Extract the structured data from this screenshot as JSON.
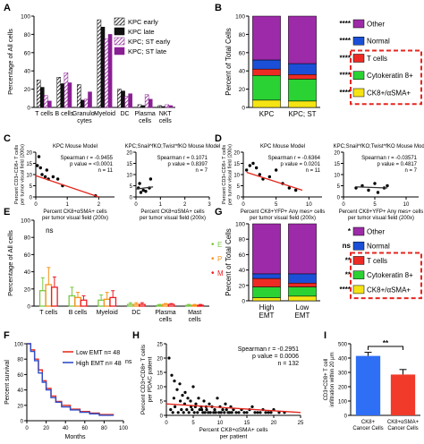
{
  "chart_data": [
    {
      "panel": "A",
      "type": "bar",
      "ylabel": "Percentage of All cells",
      "ylim": [
        0,
        100
      ],
      "yticks": [
        0,
        20,
        40,
        60,
        80,
        100
      ],
      "categories": [
        "T cells",
        "B cells",
        "Granulo-\ncytes",
        "Myeloid",
        "DC",
        "Plasma\ncells",
        "NKT\ncells"
      ],
      "series": [
        {
          "name": "KPC early",
          "pattern": "hatch-black",
          "values": [
            30,
            33,
            25,
            96,
            20,
            3,
            2
          ]
        },
        {
          "name": "KPC late",
          "pattern": "solid-black",
          "values": [
            22,
            26,
            8,
            88,
            18,
            2,
            1
          ]
        },
        {
          "name": "KPC; ST early",
          "pattern": "hatch-purple",
          "values": [
            13,
            38,
            9,
            75,
            12,
            14,
            3
          ]
        },
        {
          "name": "KPC; ST late",
          "pattern": "solid-purple",
          "values": [
            7,
            27,
            17,
            80,
            15,
            9,
            2
          ]
        }
      ]
    },
    {
      "panel": "B",
      "type": "bar",
      "stacked": true,
      "ylabel": "Percent of Total Cells",
      "ylim": [
        0,
        100
      ],
      "yticks": [
        0,
        20,
        40,
        60,
        80,
        100
      ],
      "categories": [
        "KPC",
        "KPC; ST"
      ],
      "series": [
        {
          "name": "CK8+/αSMA+",
          "color": "#f5e414",
          "values": [
            8,
            7
          ]
        },
        {
          "name": "Cytokeratin 8+",
          "color": "#2bd234",
          "values": [
            27,
            24
          ]
        },
        {
          "name": "T cells",
          "color": "#ee2a24",
          "values": [
            7,
            5
          ]
        },
        {
          "name": "Normal",
          "color": "#1b4fd8",
          "values": [
            10,
            12
          ]
        },
        {
          "name": "Other",
          "color": "#9d2aa8",
          "values": [
            48,
            52
          ]
        }
      ],
      "significance": [
        "****",
        "****",
        "****",
        "****",
        "****"
      ]
    },
    {
      "panel": "C",
      "type": "scatter",
      "title": "KPC Mouse Model",
      "xlabel": "Percent CK8+αSMA+ cells\nper tumor visual field (200x)",
      "ylabel": "Percent CD3+CD8+ T cells\nper tumor visual field (200x)",
      "xlim": [
        0,
        2.5
      ],
      "ylim": [
        0,
        20
      ],
      "xticks": [
        0,
        1,
        2
      ],
      "yticks": [
        0,
        5,
        10,
        15,
        20
      ],
      "points": [
        [
          0.05,
          14
        ],
        [
          0.1,
          18
        ],
        [
          0.15,
          13
        ],
        [
          0.2,
          10
        ],
        [
          0.3,
          9
        ],
        [
          0.35,
          12
        ],
        [
          0.4,
          8
        ],
        [
          0.55,
          9
        ],
        [
          0.7,
          8
        ],
        [
          0.85,
          5
        ],
        [
          1.9,
          0.5
        ]
      ],
      "fit": [
        [
          0,
          9.5
        ],
        [
          2.0,
          0
        ]
      ],
      "stats": {
        "label": "Spearman r",
        "r": "-0.9455",
        "p": "<0.0001",
        "n": "11"
      }
    },
    {
      "panel": "C2",
      "type": "scatter",
      "title": "KPC;Snail^fKO;Twist^fKO Mouse Model",
      "xlabel": "Percent CK8+αSMA+ cells\nper tumor visual field (200x)",
      "xlim": [
        0,
        3
      ],
      "ylim": [
        0,
        20
      ],
      "xticks": [
        0,
        1,
        2,
        3
      ],
      "yticks": [
        0,
        5,
        10,
        15,
        20
      ],
      "points": [
        [
          0.1,
          4
        ],
        [
          0.15,
          6
        ],
        [
          0.2,
          2
        ],
        [
          0.3,
          3
        ],
        [
          0.4,
          2.5
        ],
        [
          0.55,
          4
        ],
        [
          0.6,
          8
        ]
      ],
      "fit": [
        [
          0,
          3.5
        ],
        [
          0.7,
          4.5
        ]
      ],
      "stats": {
        "label": "Spearman r",
        "r": "0.1071",
        "p": "0.8397",
        "n": "7"
      }
    },
    {
      "panel": "D",
      "type": "scatter",
      "title": "KPC Mouse Model",
      "xlabel": "Percent CK8+YFP+ Any mes+ cells\nper tumor visual field (200x)",
      "ylabel": "Percent CD3+CD8+ T cells\nper tumor visual field (200x)",
      "xlim": [
        0,
        12
      ],
      "ylim": [
        0,
        20
      ],
      "xticks": [
        0,
        5,
        10
      ],
      "yticks": [
        0,
        5,
        10,
        15,
        20
      ],
      "points": [
        [
          0.5,
          12
        ],
        [
          1,
          14
        ],
        [
          1.5,
          15
        ],
        [
          2,
          13
        ],
        [
          2.5,
          10
        ],
        [
          3,
          8
        ],
        [
          4,
          9
        ],
        [
          5,
          12
        ],
        [
          6,
          6
        ],
        [
          7,
          4
        ],
        [
          8,
          3
        ]
      ],
      "fit": [
        [
          0.5,
          11
        ],
        [
          9,
          3
        ]
      ],
      "stats": {
        "label": "Spearman r",
        "r": "-0.6364",
        "p": "0.0201",
        "n": "11"
      }
    },
    {
      "panel": "D2",
      "type": "scatter",
      "title": "KPC;Snail^fKO;Twist^fKO Mouse Model",
      "xlabel": "Percent CK8+YFP+ Any mes+ cells\nper tumor visual field (200x)",
      "xlim": [
        0,
        12
      ],
      "ylim": [
        0,
        20
      ],
      "xticks": [
        0,
        5,
        10
      ],
      "yticks": [
        0,
        5,
        10,
        15,
        20
      ],
      "points": [
        [
          2,
          4
        ],
        [
          3,
          5
        ],
        [
          4,
          3
        ],
        [
          5,
          6
        ],
        [
          5.5,
          2
        ],
        [
          6.5,
          4
        ],
        [
          7,
          5
        ]
      ],
      "fit": [
        [
          2,
          4.5
        ],
        [
          7,
          4
        ]
      ],
      "stats": {
        "label": "Spearman r",
        "r": "-0.03571",
        "p": "0.4817",
        "n": "7"
      }
    },
    {
      "panel": "E",
      "type": "bar",
      "ylabel": "Percentage of All cells",
      "ylim": [
        0,
        100
      ],
      "yticks": [
        0,
        20,
        40,
        60,
        80,
        100
      ],
      "categories": [
        "T cells",
        "B cells",
        "Myeloid",
        "DC",
        "Plasma\ncells",
        "Mast\ncells"
      ],
      "series": [
        {
          "name": "E",
          "color": "#7ac943",
          "values": [
            18,
            12,
            7,
            2,
            1,
            1
          ],
          "errors": [
            15,
            10,
            6,
            2,
            1,
            1
          ]
        },
        {
          "name": "P",
          "color": "#f7931e",
          "values": [
            25,
            10,
            8,
            2,
            2,
            1
          ],
          "errors": [
            20,
            6,
            8,
            2,
            1,
            1
          ]
        },
        {
          "name": "M",
          "color": "#ed1c24",
          "values": [
            22,
            7,
            10,
            2,
            2,
            1
          ],
          "errors": [
            12,
            5,
            8,
            2,
            1,
            1
          ]
        }
      ],
      "annotations": [
        "ns"
      ]
    },
    {
      "panel": "G",
      "type": "bar",
      "stacked": true,
      "ylabel": "Percent of Total Cells",
      "ylim": [
        0,
        100
      ],
      "yticks": [
        0,
        20,
        40,
        60,
        80,
        100
      ],
      "categories": [
        "High\nEMT",
        "Low\nEMT"
      ],
      "series": [
        {
          "name": "CK8+/αSMA+",
          "color": "#f5e414",
          "values": [
            4,
            6
          ]
        },
        {
          "name": "Cytokeratin 8+",
          "color": "#2bd234",
          "values": [
            14,
            12
          ]
        },
        {
          "name": "T cells",
          "color": "#ee2a24",
          "values": [
            11,
            5
          ]
        },
        {
          "name": "Normal",
          "color": "#1b4fd8",
          "values": [
            6,
            12
          ]
        },
        {
          "name": "Other",
          "color": "#9d2aa8",
          "values": [
            65,
            65
          ]
        }
      ],
      "significance": [
        "*",
        "ns",
        "**",
        "**",
        "****"
      ]
    },
    {
      "panel": "F",
      "type": "line",
      "xlabel": "Months",
      "ylabel": "Percent survival",
      "xlim": [
        0,
        100
      ],
      "ylim": [
        0,
        100
      ],
      "xticks": [
        0,
        20,
        40,
        60,
        80,
        100
      ],
      "yticks": [
        0,
        20,
        40,
        60,
        80,
        100
      ],
      "series": [
        {
          "name": "Low EMT",
          "n": "48",
          "color": "#e53022",
          "points": [
            [
              0,
              100
            ],
            [
              4,
              92
            ],
            [
              8,
              80
            ],
            [
              12,
              66
            ],
            [
              16,
              52
            ],
            [
              20,
              42
            ],
            [
              25,
              32
            ],
            [
              30,
              25
            ],
            [
              36,
              20
            ],
            [
              45,
              15
            ],
            [
              55,
              12
            ],
            [
              65,
              10
            ],
            [
              75,
              8
            ],
            [
              90,
              8
            ]
          ]
        },
        {
          "name": "High EMT",
          "n": "48",
          "color": "#2f4fc9",
          "points": [
            [
              0,
              100
            ],
            [
              4,
              90
            ],
            [
              8,
              78
            ],
            [
              12,
              62
            ],
            [
              16,
              50
            ],
            [
              20,
              40
            ],
            [
              25,
              30
            ],
            [
              30,
              24
            ],
            [
              36,
              18
            ],
            [
              45,
              14
            ],
            [
              55,
              11
            ],
            [
              65,
              9
            ],
            [
              75,
              7
            ],
            [
              90,
              7
            ]
          ]
        }
      ],
      "annotations": [
        "ns"
      ]
    },
    {
      "panel": "H",
      "type": "scatter",
      "xlabel": "Percent CK8+αSMA+ cells\nper patient",
      "ylabel": "Percent CD3+CD8+ T cells\nper PDAC patient",
      "xlim": [
        0,
        25
      ],
      "ylim": [
        0,
        25
      ],
      "xticks": [
        0,
        5,
        10,
        15,
        20,
        25
      ],
      "yticks": [
        0,
        5,
        10,
        15,
        20,
        25
      ],
      "points": [
        [
          0.5,
          20
        ],
        [
          1,
          14
        ],
        [
          1.5,
          12
        ],
        [
          2,
          9
        ],
        [
          2.5,
          11
        ],
        [
          3,
          7
        ],
        [
          3.5,
          8
        ],
        [
          4,
          6
        ],
        [
          4.5,
          5
        ],
        [
          5,
          10
        ],
        [
          5.5,
          4
        ],
        [
          6,
          6
        ],
        [
          6.5,
          3
        ],
        [
          7,
          5
        ],
        [
          7.5,
          2
        ],
        [
          8,
          4
        ],
        [
          8.5,
          3
        ],
        [
          9,
          2
        ],
        [
          9.5,
          6
        ],
        [
          10,
          3
        ],
        [
          10.5,
          2
        ],
        [
          11,
          4
        ],
        [
          11.5,
          1
        ],
        [
          12,
          3
        ],
        [
          12.5,
          2
        ],
        [
          13,
          1
        ],
        [
          14,
          2
        ],
        [
          15,
          1
        ],
        [
          16,
          3
        ],
        [
          17,
          1
        ],
        [
          18,
          2
        ],
        [
          19,
          1
        ],
        [
          20,
          2
        ],
        [
          22,
          1
        ],
        [
          0.8,
          2
        ],
        [
          1.2,
          1
        ],
        [
          1.6,
          3
        ],
        [
          2.2,
          1
        ],
        [
          2.8,
          2
        ],
        [
          3.2,
          1
        ],
        [
          3.8,
          2
        ],
        [
          4.2,
          1
        ],
        [
          4.8,
          2
        ],
        [
          5.2,
          1
        ],
        [
          5.8,
          1
        ],
        [
          6.2,
          2
        ],
        [
          6.8,
          1
        ],
        [
          7.2,
          1
        ],
        [
          7.8,
          1
        ],
        [
          8.2,
          1
        ],
        [
          8.8,
          1
        ],
        [
          9.2,
          1
        ],
        [
          9.8,
          1
        ],
        [
          10.2,
          1
        ],
        [
          10.8,
          1
        ],
        [
          11.2,
          2
        ],
        [
          11.8,
          1
        ],
        [
          12.2,
          1
        ],
        [
          13.5,
          1
        ],
        [
          14.5,
          1
        ],
        [
          15.5,
          2
        ],
        [
          16.5,
          1
        ],
        [
          17.5,
          1
        ],
        [
          18.5,
          1
        ],
        [
          19.5,
          1
        ],
        [
          21,
          1
        ],
        [
          1.4,
          6
        ],
        [
          2.6,
          5
        ],
        [
          3.4,
          4
        ],
        [
          4.6,
          3
        ],
        [
          5.4,
          3
        ],
        [
          6.6,
          2
        ],
        [
          7.4,
          3
        ]
      ],
      "fit": [
        [
          0,
          4
        ],
        [
          25,
          1
        ]
      ],
      "stats": {
        "label": "Spearman r",
        "r": "-0.2951",
        "p": "0.0006",
        "n": "132"
      }
    },
    {
      "panel": "I",
      "type": "bar",
      "ylabel": "CD3+CD8+ T cell\ninfiltration within 20 μm",
      "ylim": [
        0,
        500
      ],
      "yticks": [
        0,
        100,
        200,
        300,
        400,
        500
      ],
      "categories": [
        "CK8+\nCancer Cells",
        "CK8+αSMA+\nCancer Cells"
      ],
      "values": [
        415,
        285
      ],
      "errors": [
        25,
        35
      ],
      "colors": [
        "#2f6ff5",
        "#f23a2a"
      ],
      "annotations": [
        "**"
      ]
    }
  ],
  "labels": {
    "panels": {
      "A": "A",
      "B": "B",
      "C": "C",
      "D": "D",
      "E": "E",
      "F": "F",
      "G": "G",
      "H": "H",
      "I": "I"
    },
    "a_legend": [
      "KPC early",
      "KPC late",
      "KPC; ST early",
      "KPC; ST late"
    ],
    "b_legend": [
      "Other",
      "Normal",
      "T cells",
      "Cytokeratin 8+",
      "CK8+/αSMA+"
    ],
    "g_legend": [
      "Other",
      "Normal",
      "T cells",
      "Cytokeratin 8+",
      "CK8+/αSMA+"
    ],
    "f_legend": [
      "Low EMT",
      "High EMT"
    ]
  }
}
